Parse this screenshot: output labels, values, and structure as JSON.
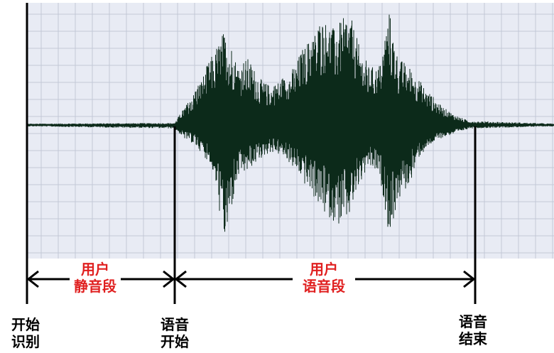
{
  "colors": {
    "grid_background": "#e8ebf4",
    "grid_line": "#c3c8d6",
    "waveform": "#0c2a1a",
    "marker": "#000000",
    "segment_label": "#e02020"
  },
  "segments": {
    "silence": {
      "line1": "用户",
      "line2": "静音段"
    },
    "speech": {
      "line1": "用户",
      "line2": "语音段"
    }
  },
  "markers": {
    "recognition_start": {
      "line1": "开始",
      "line2": "识别"
    },
    "speech_start": {
      "line1": "语音",
      "line2": "开始"
    },
    "speech_end": {
      "line1": "语音",
      "line2": "结束"
    }
  }
}
